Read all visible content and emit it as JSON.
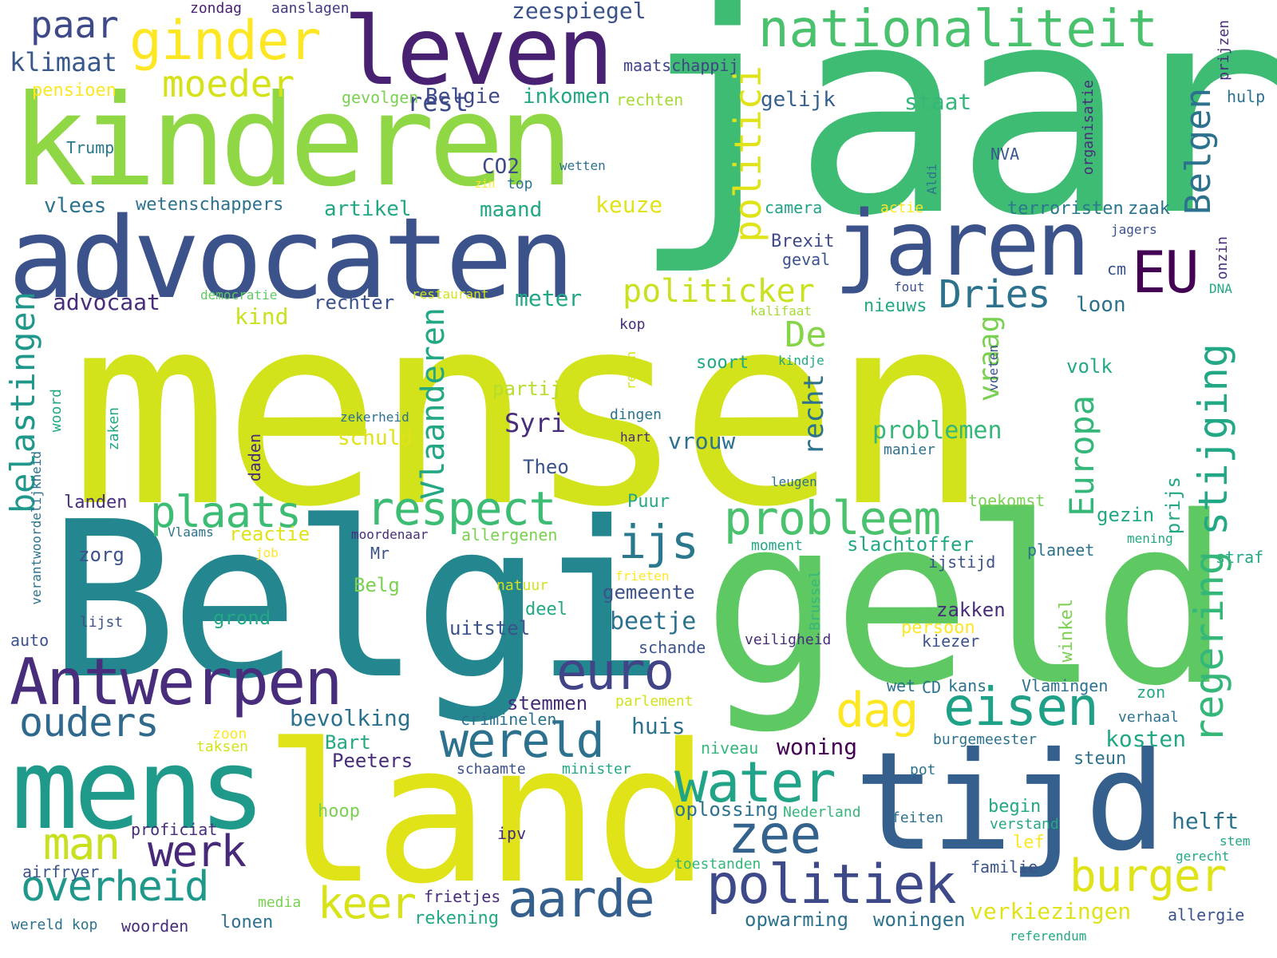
{
  "palette": {
    "c1": "#440154",
    "c2": "#472d7b",
    "c3": "#3b528b",
    "c4": "#2c728e",
    "c5": "#21918c",
    "c6": "#28ae80",
    "c7": "#5ec962",
    "c8": "#addc30",
    "c9": "#d2e21b",
    "c10": "#fde725"
  },
  "words": [
    {
      "text": "mensen",
      "color": "#d2e21b"
    },
    {
      "text": "jaar",
      "color": "#3fbc73"
    },
    {
      "text": "Belgi",
      "color": "#24868e"
    },
    {
      "text": "geld",
      "color": "#5ec962"
    },
    {
      "text": "land",
      "color": "#dfe318"
    },
    {
      "text": "kinderen",
      "color": "#8fd744"
    },
    {
      "text": "advocaten",
      "color": "#3b528b"
    },
    {
      "text": "mens",
      "color": "#1f9a8a"
    },
    {
      "text": "tijd",
      "color": "#355f8d"
    },
    {
      "text": "leven",
      "color": "#482173"
    },
    {
      "text": "nationaliteit",
      "color": "#4ac16d"
    },
    {
      "text": "jaren",
      "color": "#3b528b"
    },
    {
      "text": "Antwerpen",
      "color": "#472d7b"
    },
    {
      "text": "ginder",
      "color": "#fde725"
    },
    {
      "text": "water",
      "color": "#20a386"
    },
    {
      "text": "eisen",
      "color": "#1fa187"
    },
    {
      "text": "politiek",
      "color": "#3e4989"
    },
    {
      "text": "zee",
      "color": "#33638d"
    },
    {
      "text": "aarde",
      "color": "#355f8d"
    },
    {
      "text": "EU",
      "color": "#440154"
    },
    {
      "text": "euro",
      "color": "#414487"
    },
    {
      "text": "wereld",
      "color": "#2c728e"
    },
    {
      "text": "probleem",
      "color": "#4ac16d"
    },
    {
      "text": "respect",
      "color": "#3dbc74"
    },
    {
      "text": "plaats",
      "color": "#3dbc74"
    },
    {
      "text": "ijs",
      "color": "#2a788e"
    },
    {
      "text": "dag",
      "color": "#fde725"
    },
    {
      "text": "burger",
      "color": "#dfe318"
    },
    {
      "text": "keer",
      "color": "#d8e219"
    },
    {
      "text": "overheid",
      "color": "#1f988b"
    },
    {
      "text": "man",
      "color": "#c8e020"
    },
    {
      "text": "werk",
      "color": "#482878"
    },
    {
      "text": "ouders",
      "color": "#30698e"
    },
    {
      "text": "moeder",
      "color": "#d5e21a"
    },
    {
      "text": "paar",
      "color": "#3e4989"
    },
    {
      "text": "Dries",
      "color": "#2c728e"
    },
    {
      "text": "De",
      "color": "#86d549"
    },
    {
      "text": "politicker",
      "color": "#cae11f"
    },
    {
      "text": "klimaat",
      "color": "#38588c"
    },
    {
      "text": "rest",
      "color": "#3e4989"
    },
    {
      "text": "zeespiegel",
      "color": "#3b528b"
    },
    {
      "text": "zondag",
      "color": "#481f70"
    },
    {
      "text": "aanslagen",
      "color": "#453882"
    },
    {
      "text": "maatschappij",
      "color": "#414487"
    },
    {
      "text": "pensioen",
      "color": "#fde725"
    },
    {
      "text": "gevolgen",
      "color": "#7ad151"
    },
    {
      "text": "Belgie",
      "color": "#3e4989"
    },
    {
      "text": "inkomen",
      "color": "#22a884"
    },
    {
      "text": "rechten",
      "color": "#a5db36"
    },
    {
      "text": "gelijk",
      "color": "#355f8d"
    },
    {
      "text": "staat",
      "color": "#35b779"
    },
    {
      "text": "Trump",
      "color": "#2a788e"
    },
    {
      "text": "CO2",
      "color": "#3e4989"
    },
    {
      "text": "wetten",
      "color": "#2c728e"
    },
    {
      "text": "zin",
      "color": "#fde725"
    },
    {
      "text": "top",
      "color": "#2c728e"
    },
    {
      "text": "NVA",
      "color": "#38588c"
    },
    {
      "text": "vlees",
      "color": "#2c728e"
    },
    {
      "text": "wetenschappers",
      "color": "#2c728e"
    },
    {
      "text": "artikel",
      "color": "#22a884"
    },
    {
      "text": "maand",
      "color": "#22a884"
    },
    {
      "text": "keuze",
      "color": "#dfe318"
    },
    {
      "text": "camera",
      "color": "#20a386"
    },
    {
      "text": "actie",
      "color": "#fde725"
    },
    {
      "text": "terroristen",
      "color": "#2a788e"
    },
    {
      "text": "zaak",
      "color": "#2c728e"
    },
    {
      "text": "jagers",
      "color": "#3b528b"
    },
    {
      "text": "Brexit",
      "color": "#3e4989"
    },
    {
      "text": "geval",
      "color": "#3b528b"
    },
    {
      "text": "cm",
      "color": "#3b528b"
    },
    {
      "text": "advocaat",
      "color": "#472d7b"
    },
    {
      "text": "democratie",
      "color": "#5ec962"
    },
    {
      "text": "rechter",
      "color": "#3b528b"
    },
    {
      "text": "restaurant",
      "color": "#d2e21b"
    },
    {
      "text": "meter",
      "color": "#22a884"
    },
    {
      "text": "fout",
      "color": "#3b528b"
    },
    {
      "text": "DNA",
      "color": "#22a884"
    },
    {
      "text": "kalifaat",
      "color": "#a5db36"
    },
    {
      "text": "nieuws",
      "color": "#22a884"
    },
    {
      "text": "loon",
      "color": "#2c728e"
    },
    {
      "text": "kind",
      "color": "#cae11f"
    },
    {
      "text": "kop",
      "color": "#472d7b"
    },
    {
      "text": "soort",
      "color": "#22a884"
    },
    {
      "text": "kindje",
      "color": "#22a884"
    },
    {
      "text": "volk",
      "color": "#22a884"
    },
    {
      "text": "partij",
      "color": "#b5de2b"
    },
    {
      "text": "zekerheid",
      "color": "#2c728e"
    },
    {
      "text": "dingen",
      "color": "#2c728e"
    },
    {
      "text": "Syri",
      "color": "#472d7b"
    },
    {
      "text": "schuld",
      "color": "#dfe318"
    },
    {
      "text": "vrouw",
      "color": "#2c728e"
    },
    {
      "text": "problemen",
      "color": "#35b779"
    },
    {
      "text": "hart",
      "color": "#472d7b"
    },
    {
      "text": "manier",
      "color": "#2c728e"
    },
    {
      "text": "Theo",
      "color": "#3b528b"
    },
    {
      "text": "leugen",
      "color": "#2c728e"
    },
    {
      "text": "landen",
      "color": "#472d7b"
    },
    {
      "text": "Puur",
      "color": "#22a884"
    },
    {
      "text": "toekomst",
      "color": "#7ad151"
    },
    {
      "text": "gezin",
      "color": "#22a884"
    },
    {
      "text": "Vlaams",
      "color": "#2c728e"
    },
    {
      "text": "reactie",
      "color": "#dfe318"
    },
    {
      "text": "moordenaar",
      "color": "#472d7b"
    },
    {
      "text": "allergenen",
      "color": "#7ad151"
    },
    {
      "text": "moment",
      "color": "#22a884"
    },
    {
      "text": "slachtoffer",
      "color": "#22a884"
    },
    {
      "text": "mening",
      "color": "#22a884"
    },
    {
      "text": "zorg",
      "color": "#3b528b"
    },
    {
      "text": "job",
      "color": "#fde725"
    },
    {
      "text": "Mr",
      "color": "#3b528b"
    },
    {
      "text": "planeet",
      "color": "#2c728e"
    },
    {
      "text": "ijstijd",
      "color": "#3b528b"
    },
    {
      "text": "straf",
      "color": "#22a884"
    },
    {
      "text": "frieten",
      "color": "#fde725"
    },
    {
      "text": "Belg",
      "color": "#7ad151"
    },
    {
      "text": "natuur",
      "color": "#d2e21b"
    },
    {
      "text": "gemeente",
      "color": "#3b528b"
    },
    {
      "text": "lijst",
      "color": "#3b528b"
    },
    {
      "text": "grond",
      "color": "#22a884"
    },
    {
      "text": "deel",
      "color": "#22a884"
    },
    {
      "text": "beetje",
      "color": "#2c728e"
    },
    {
      "text": "zakken",
      "color": "#472d7b"
    },
    {
      "text": "persoon",
      "color": "#fde725"
    },
    {
      "text": "uitstel",
      "color": "#3b528b"
    },
    {
      "text": "auto",
      "color": "#3b528b"
    },
    {
      "text": "schande",
      "color": "#3b528b"
    },
    {
      "text": "veiligheid",
      "color": "#472d7b"
    },
    {
      "text": "kiezer",
      "color": "#3b528b"
    },
    {
      "text": "stemmen",
      "color": "#472d7b"
    },
    {
      "text": "parlement",
      "color": "#d2e21b"
    },
    {
      "text": "wet",
      "color": "#2c728e"
    },
    {
      "text": "CD",
      "color": "#2c728e"
    },
    {
      "text": "kans",
      "color": "#2c728e"
    },
    {
      "text": "Vlamingen",
      "color": "#2c728e"
    },
    {
      "text": "zon",
      "color": "#22a884"
    },
    {
      "text": "bevolking",
      "color": "#2c728e"
    },
    {
      "text": "huis",
      "color": "#2c728e"
    },
    {
      "text": "criminelen",
      "color": "#2c728e"
    },
    {
      "text": "kosten",
      "color": "#22a884"
    },
    {
      "text": "verhaal",
      "color": "#2c728e"
    },
    {
      "text": "zoon",
      "color": "#fde725"
    },
    {
      "text": "Bart",
      "color": "#22a884"
    },
    {
      "text": "taksen",
      "color": "#d2e21b"
    },
    {
      "text": "niveau",
      "color": "#35b779"
    },
    {
      "text": "woning",
      "color": "#440154"
    },
    {
      "text": "burgemeester",
      "color": "#2c728e"
    },
    {
      "text": "Peeters",
      "color": "#472d7b"
    },
    {
      "text": "schaamte",
      "color": "#3b528b"
    },
    {
      "text": "minister",
      "color": "#22a884"
    },
    {
      "text": "steun",
      "color": "#2c728e"
    },
    {
      "text": "pot",
      "color": "#2c728e"
    },
    {
      "text": "hoop",
      "color": "#7ad151"
    },
    {
      "text": "oplossing",
      "color": "#2c728e"
    },
    {
      "text": "Nederland",
      "color": "#35b779"
    },
    {
      "text": "begin",
      "color": "#22a884"
    },
    {
      "text": "helft",
      "color": "#2c728e"
    },
    {
      "text": "proficiat",
      "color": "#472d7b"
    },
    {
      "text": "ipv",
      "color": "#472d7b"
    },
    {
      "text": "feiten",
      "color": "#2c728e"
    },
    {
      "text": "verstand",
      "color": "#22a884"
    },
    {
      "text": "lef",
      "color": "#fde725"
    },
    {
      "text": "stem",
      "color": "#22a884"
    },
    {
      "text": "gerecht",
      "color": "#22a884"
    },
    {
      "text": "airfryer",
      "color": "#3b528b"
    },
    {
      "text": "toestanden",
      "color": "#35b779"
    },
    {
      "text": "familie",
      "color": "#3b528b"
    },
    {
      "text": "media",
      "color": "#7ad151"
    },
    {
      "text": "frietjes",
      "color": "#472d7b"
    },
    {
      "text": "verkiezingen",
      "color": "#dfe318"
    },
    {
      "text": "allergie",
      "color": "#3b528b"
    },
    {
      "text": "wereld kop",
      "color": "#2c728e"
    },
    {
      "text": "woorden",
      "color": "#472d7b"
    },
    {
      "text": "lonen",
      "color": "#2c728e"
    },
    {
      "text": "rekening",
      "color": "#22a884"
    },
    {
      "text": "opwarming",
      "color": "#2c728e"
    },
    {
      "text": "woningen",
      "color": "#2c728e"
    },
    {
      "text": "referendum",
      "color": "#22a884"
    },
    {
      "text": "politici",
      "color": "#dfe318"
    },
    {
      "text": "Belgen",
      "color": "#2c728e"
    },
    {
      "text": "regering",
      "color": "#35b779"
    },
    {
      "text": "stijging",
      "color": "#22a884"
    },
    {
      "text": "Europa",
      "color": "#35b779"
    },
    {
      "text": "Vlaanderen",
      "color": "#22a884"
    },
    {
      "text": "vraag",
      "color": "#7ad151"
    },
    {
      "text": "recht",
      "color": "#2c728e"
    },
    {
      "text": "belastingen",
      "color": "#1f988b"
    },
    {
      "text": "verantwoordelijkheid",
      "color": "#2c728e"
    },
    {
      "text": "woord",
      "color": "#22a884"
    },
    {
      "text": "zaken",
      "color": "#22a884"
    },
    {
      "text": "daden",
      "color": "#472d7b"
    },
    {
      "text": "reden",
      "color": "#d2e21b"
    },
    {
      "text": "voeten",
      "color": "#3b528b"
    },
    {
      "text": "Brussel",
      "color": "#35b779"
    },
    {
      "text": "winkel",
      "color": "#7ad151"
    },
    {
      "text": "prijs",
      "color": "#22a884"
    },
    {
      "text": "organisatie",
      "color": "#472d7b"
    },
    {
      "text": "Aldi",
      "color": "#2c728e"
    },
    {
      "text": "prijzen",
      "color": "#472d7b"
    },
    {
      "text": "hulp",
      "color": "#2c728e"
    },
    {
      "text": "onzin",
      "color": "#472d7b"
    }
  ]
}
